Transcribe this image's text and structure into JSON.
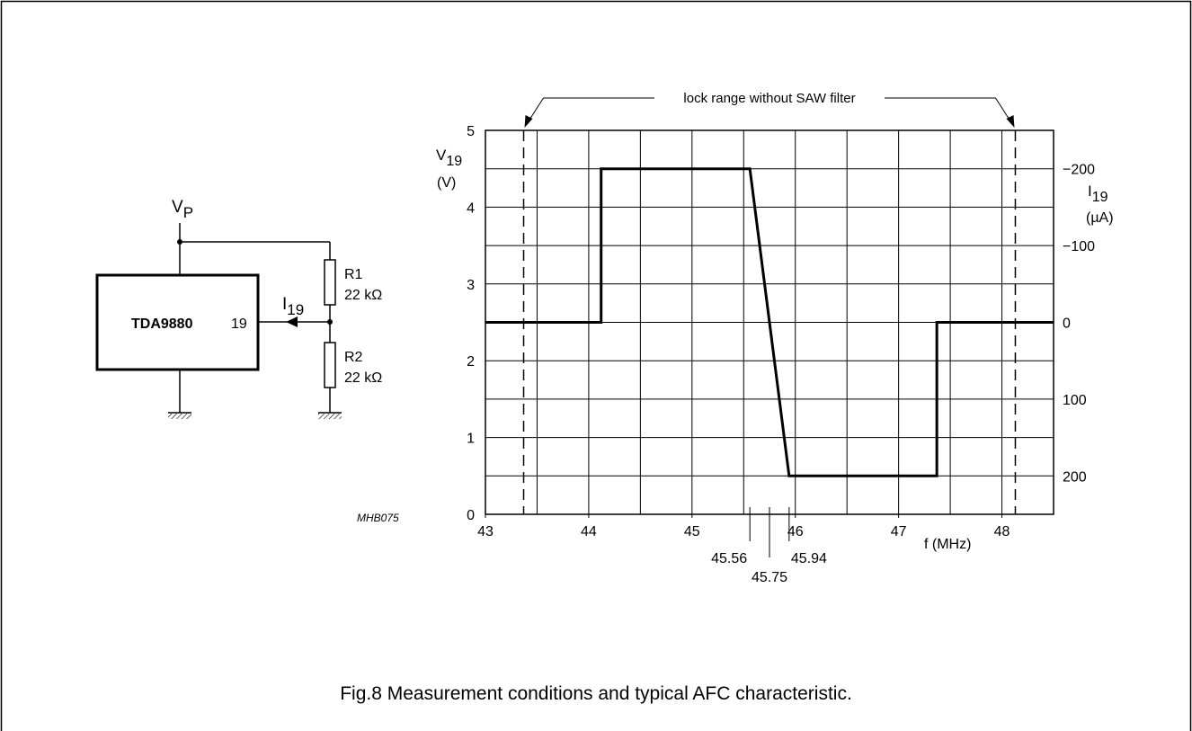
{
  "figure": {
    "caption": "Fig.8  Measurement conditions and typical AFC characteristic.",
    "code": "MHB075"
  },
  "circuit": {
    "supply_label": "V",
    "supply_sub": "P",
    "ic_label": "TDA9880",
    "pin_label": "19",
    "current_label": "I",
    "current_sub": "19",
    "r1_name": "R1",
    "r1_value": "22 kΩ",
    "r2_name": "R2",
    "r2_value": "22 kΩ"
  },
  "chart_data": {
    "type": "line",
    "title": "",
    "xlabel": "f (MHz)",
    "ylabel_main": "V",
    "ylabel_sub": "19",
    "ylabel_unit": "(V)",
    "y2label_main": "I",
    "y2label_sub": "19",
    "y2label_unit": "(µA)",
    "xlim": [
      43,
      48.5
    ],
    "ylim": [
      0,
      5
    ],
    "grid": true,
    "x_ticks": [
      43,
      44,
      45,
      46,
      47,
      48
    ],
    "x_tick_labels": [
      "43",
      "44",
      "45",
      "46",
      "47",
      "48"
    ],
    "x_minor_gridlines": [
      43.5,
      44.5,
      45.5,
      46.5,
      47.5
    ],
    "y_ticks": [
      0,
      1,
      2,
      3,
      4,
      5
    ],
    "y_tick_labels": [
      "0",
      "1",
      "2",
      "3",
      "4",
      "5"
    ],
    "y_minor_gridlines": [
      0.5,
      1.5,
      2.5,
      3.5,
      4.5
    ],
    "y2_ticks": [
      {
        "y": 4.5,
        "label": "−200"
      },
      {
        "y": 3.5,
        "label": "−100"
      },
      {
        "y": 2.5,
        "label": "0"
      },
      {
        "y": 1.5,
        "label": "100"
      },
      {
        "y": 0.5,
        "label": "200"
      }
    ],
    "series": [
      {
        "x": [
          43,
          44.12,
          44.12,
          45.56,
          45.94,
          47.37,
          47.37,
          48.5
        ],
        "y": [
          2.5,
          2.5,
          4.5,
          4.5,
          0.5,
          0.5,
          2.5,
          2.5
        ]
      }
    ],
    "markers": [
      {
        "x": 45.56,
        "label": "45.56"
      },
      {
        "x": 45.75,
        "label": "45.75"
      },
      {
        "x": 45.94,
        "label": "45.94"
      }
    ],
    "lock_range": {
      "x1": 43.37,
      "x2": 48.13,
      "label": "lock range without SAW filter"
    }
  }
}
